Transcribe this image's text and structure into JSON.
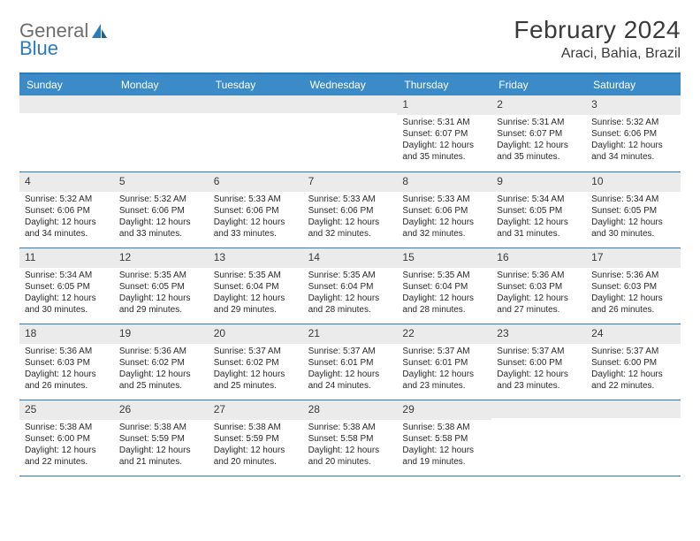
{
  "logo": {
    "general": "General",
    "blue": "Blue"
  },
  "title": "February 2024",
  "location": "Araci, Bahia, Brazil",
  "colors": {
    "header_bar": "#3b8bc9",
    "rule": "#2b7bbf",
    "daynum_bg": "#ebebeb",
    "text": "#2a2a2a",
    "title_text": "#3a3a3a",
    "logo_gray": "#6e6e6e",
    "logo_blue": "#2b7bbf"
  },
  "day_names": [
    "Sunday",
    "Monday",
    "Tuesday",
    "Wednesday",
    "Thursday",
    "Friday",
    "Saturday"
  ],
  "weeks": [
    [
      null,
      null,
      null,
      null,
      {
        "n": "1",
        "sunrise": "5:31 AM",
        "sunset": "6:07 PM",
        "dl1": "Daylight: 12 hours",
        "dl2": "and 35 minutes."
      },
      {
        "n": "2",
        "sunrise": "5:31 AM",
        "sunset": "6:07 PM",
        "dl1": "Daylight: 12 hours",
        "dl2": "and 35 minutes."
      },
      {
        "n": "3",
        "sunrise": "5:32 AM",
        "sunset": "6:06 PM",
        "dl1": "Daylight: 12 hours",
        "dl2": "and 34 minutes."
      }
    ],
    [
      {
        "n": "4",
        "sunrise": "5:32 AM",
        "sunset": "6:06 PM",
        "dl1": "Daylight: 12 hours",
        "dl2": "and 34 minutes."
      },
      {
        "n": "5",
        "sunrise": "5:32 AM",
        "sunset": "6:06 PM",
        "dl1": "Daylight: 12 hours",
        "dl2": "and 33 minutes."
      },
      {
        "n": "6",
        "sunrise": "5:33 AM",
        "sunset": "6:06 PM",
        "dl1": "Daylight: 12 hours",
        "dl2": "and 33 minutes."
      },
      {
        "n": "7",
        "sunrise": "5:33 AM",
        "sunset": "6:06 PM",
        "dl1": "Daylight: 12 hours",
        "dl2": "and 32 minutes."
      },
      {
        "n": "8",
        "sunrise": "5:33 AM",
        "sunset": "6:06 PM",
        "dl1": "Daylight: 12 hours",
        "dl2": "and 32 minutes."
      },
      {
        "n": "9",
        "sunrise": "5:34 AM",
        "sunset": "6:05 PM",
        "dl1": "Daylight: 12 hours",
        "dl2": "and 31 minutes."
      },
      {
        "n": "10",
        "sunrise": "5:34 AM",
        "sunset": "6:05 PM",
        "dl1": "Daylight: 12 hours",
        "dl2": "and 30 minutes."
      }
    ],
    [
      {
        "n": "11",
        "sunrise": "5:34 AM",
        "sunset": "6:05 PM",
        "dl1": "Daylight: 12 hours",
        "dl2": "and 30 minutes."
      },
      {
        "n": "12",
        "sunrise": "5:35 AM",
        "sunset": "6:05 PM",
        "dl1": "Daylight: 12 hours",
        "dl2": "and 29 minutes."
      },
      {
        "n": "13",
        "sunrise": "5:35 AM",
        "sunset": "6:04 PM",
        "dl1": "Daylight: 12 hours",
        "dl2": "and 29 minutes."
      },
      {
        "n": "14",
        "sunrise": "5:35 AM",
        "sunset": "6:04 PM",
        "dl1": "Daylight: 12 hours",
        "dl2": "and 28 minutes."
      },
      {
        "n": "15",
        "sunrise": "5:35 AM",
        "sunset": "6:04 PM",
        "dl1": "Daylight: 12 hours",
        "dl2": "and 28 minutes."
      },
      {
        "n": "16",
        "sunrise": "5:36 AM",
        "sunset": "6:03 PM",
        "dl1": "Daylight: 12 hours",
        "dl2": "and 27 minutes."
      },
      {
        "n": "17",
        "sunrise": "5:36 AM",
        "sunset": "6:03 PM",
        "dl1": "Daylight: 12 hours",
        "dl2": "and 26 minutes."
      }
    ],
    [
      {
        "n": "18",
        "sunrise": "5:36 AM",
        "sunset": "6:03 PM",
        "dl1": "Daylight: 12 hours",
        "dl2": "and 26 minutes."
      },
      {
        "n": "19",
        "sunrise": "5:36 AM",
        "sunset": "6:02 PM",
        "dl1": "Daylight: 12 hours",
        "dl2": "and 25 minutes."
      },
      {
        "n": "20",
        "sunrise": "5:37 AM",
        "sunset": "6:02 PM",
        "dl1": "Daylight: 12 hours",
        "dl2": "and 25 minutes."
      },
      {
        "n": "21",
        "sunrise": "5:37 AM",
        "sunset": "6:01 PM",
        "dl1": "Daylight: 12 hours",
        "dl2": "and 24 minutes."
      },
      {
        "n": "22",
        "sunrise": "5:37 AM",
        "sunset": "6:01 PM",
        "dl1": "Daylight: 12 hours",
        "dl2": "and 23 minutes."
      },
      {
        "n": "23",
        "sunrise": "5:37 AM",
        "sunset": "6:00 PM",
        "dl1": "Daylight: 12 hours",
        "dl2": "and 23 minutes."
      },
      {
        "n": "24",
        "sunrise": "5:37 AM",
        "sunset": "6:00 PM",
        "dl1": "Daylight: 12 hours",
        "dl2": "and 22 minutes."
      }
    ],
    [
      {
        "n": "25",
        "sunrise": "5:38 AM",
        "sunset": "6:00 PM",
        "dl1": "Daylight: 12 hours",
        "dl2": "and 22 minutes."
      },
      {
        "n": "26",
        "sunrise": "5:38 AM",
        "sunset": "5:59 PM",
        "dl1": "Daylight: 12 hours",
        "dl2": "and 21 minutes."
      },
      {
        "n": "27",
        "sunrise": "5:38 AM",
        "sunset": "5:59 PM",
        "dl1": "Daylight: 12 hours",
        "dl2": "and 20 minutes."
      },
      {
        "n": "28",
        "sunrise": "5:38 AM",
        "sunset": "5:58 PM",
        "dl1": "Daylight: 12 hours",
        "dl2": "and 20 minutes."
      },
      {
        "n": "29",
        "sunrise": "5:38 AM",
        "sunset": "5:58 PM",
        "dl1": "Daylight: 12 hours",
        "dl2": "and 19 minutes."
      },
      null,
      null
    ]
  ],
  "labels": {
    "sunrise": "Sunrise: ",
    "sunset": "Sunset: "
  }
}
